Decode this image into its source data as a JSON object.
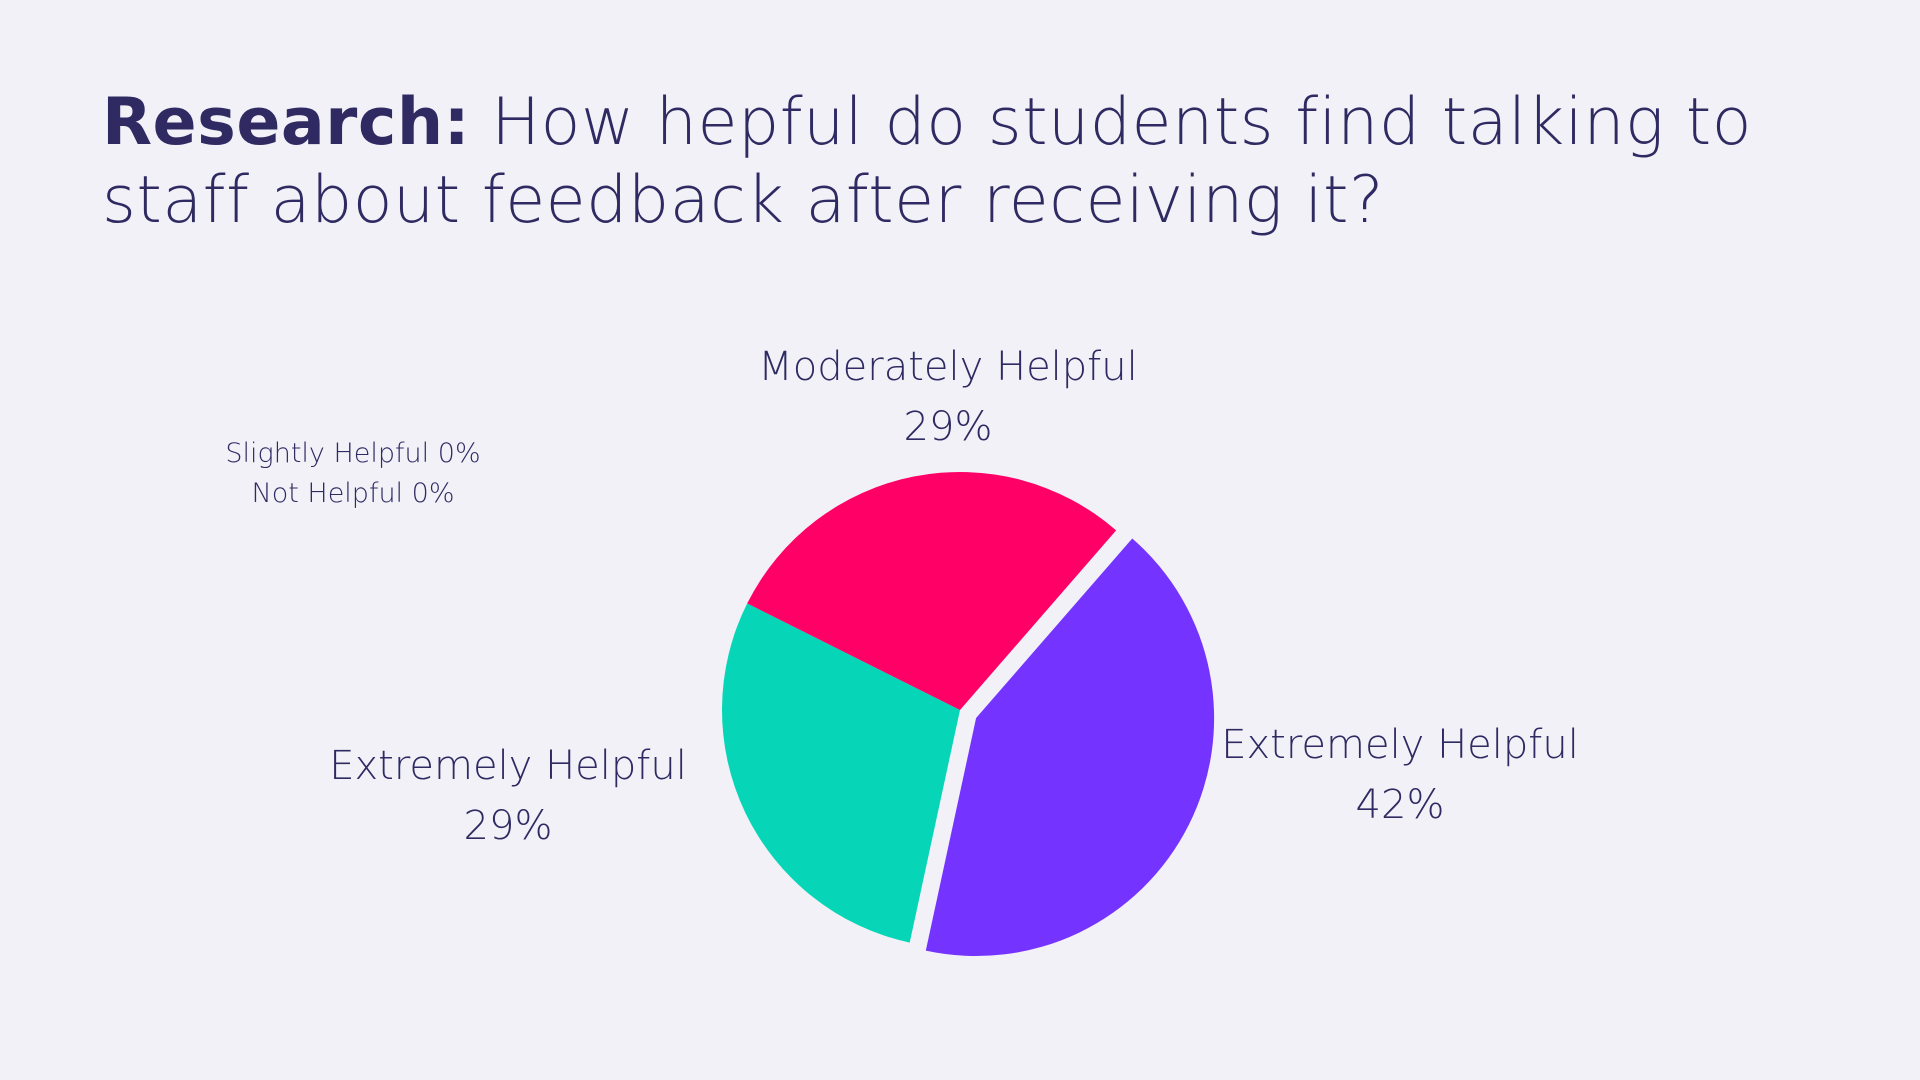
{
  "title": {
    "bold": "Research:",
    "rest": " How hepful do students find talking to staff about feedback after receiving it?"
  },
  "colors": {
    "background": "#f1f1f7",
    "text": "#2f2a62",
    "extremely_helpful_purple": "#7433ff",
    "extremely_helpful_teal": "#06d6b7",
    "moderately_helpful": "#ff0066"
  },
  "chart_data": {
    "type": "pie",
    "title": "How hepful do students find talking to staff about feedback after receiving it?",
    "slices": [
      {
        "label": "Extremely Helpful",
        "value": 42,
        "value_label": "42%",
        "color": "#7433ff",
        "exploded": true
      },
      {
        "label": "Extremely Helpful",
        "value": 29,
        "value_label": "29%",
        "color": "#06d6b7",
        "exploded": false
      },
      {
        "label": "Moderately Helpful",
        "value": 29,
        "value_label": "29%",
        "color": "#ff0066",
        "exploded": false
      }
    ],
    "zero_slices": [
      {
        "label": "Slightly Helpful",
        "value": 0,
        "value_label": "0%"
      },
      {
        "label": "Not Helpful",
        "value": 0,
        "value_label": "0%"
      }
    ],
    "legend": "none"
  }
}
